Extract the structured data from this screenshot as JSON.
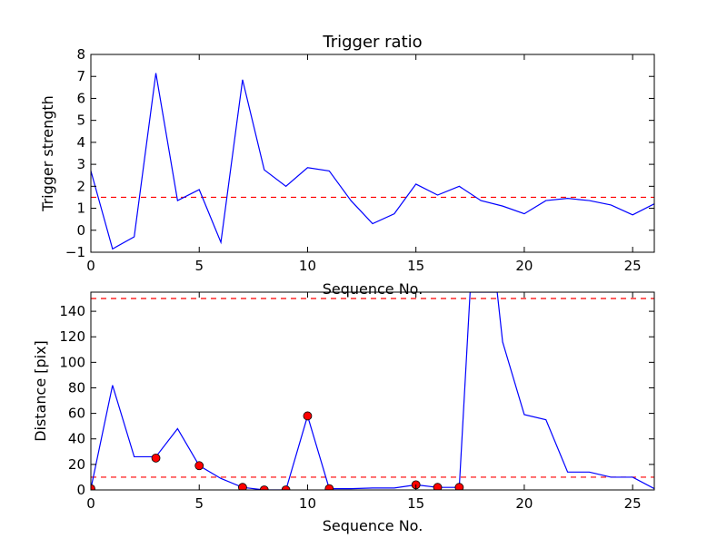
{
  "figure": {
    "title": "Trigger ratio"
  },
  "chart_data": [
    {
      "type": "line",
      "title": "Trigger ratio",
      "xlabel": "Sequence No.",
      "ylabel": "Trigger strength",
      "xlim": [
        0,
        26
      ],
      "ylim": [
        -1,
        8
      ],
      "xticks": [
        0,
        5,
        10,
        15,
        20,
        25
      ],
      "yticks": [
        -1,
        0,
        1,
        2,
        3,
        4,
        5,
        6,
        7,
        8
      ],
      "grid": false,
      "colors": {
        "line": "#0000ff",
        "threshold": "#ff0000",
        "axes": "#000000"
      },
      "series": [
        {
          "x": [
            0,
            1,
            2,
            3,
            4,
            5,
            6,
            7,
            8,
            9,
            10,
            11,
            12,
            13,
            14,
            15,
            16,
            17,
            18,
            19,
            20,
            21,
            22,
            23,
            24,
            25,
            26
          ],
          "values": [
            2.7,
            -0.85,
            -0.3,
            7.15,
            1.35,
            1.85,
            -0.55,
            6.85,
            2.75,
            2.0,
            2.85,
            2.7,
            1.35,
            0.3,
            0.75,
            2.1,
            1.6,
            2.0,
            1.35,
            1.1,
            0.75,
            1.35,
            1.45,
            1.35,
            1.15,
            0.7,
            1.2
          ]
        }
      ],
      "hlines": [
        1.5
      ]
    },
    {
      "type": "line",
      "title": "",
      "xlabel": "Sequence No.",
      "ylabel": "Distance [pix]",
      "xlim": [
        0,
        26
      ],
      "ylim": [
        0,
        155
      ],
      "xticks": [
        0,
        5,
        10,
        15,
        20,
        25
      ],
      "yticks": [
        0,
        20,
        40,
        60,
        80,
        100,
        120,
        140
      ],
      "grid": false,
      "colors": {
        "line": "#0000ff",
        "threshold": "#ff0000",
        "marker": "#ff0000",
        "axes": "#000000"
      },
      "series": [
        {
          "x": [
            0,
            1,
            2,
            3,
            4,
            5,
            6,
            7,
            8,
            9,
            10,
            11,
            12,
            13,
            14,
            15,
            16,
            17,
            17.5,
            18.75,
            19,
            20,
            21,
            22,
            23,
            24,
            25,
            26
          ],
          "values": [
            1,
            82,
            26,
            26,
            48,
            19,
            9,
            2,
            0,
            0,
            58,
            1,
            1,
            1.5,
            1.5,
            4,
            2,
            2,
            155,
            155,
            116,
            59,
            55,
            14,
            14,
            10,
            10,
            1
          ]
        }
      ],
      "markers": {
        "x": [
          0,
          3,
          5,
          7,
          8,
          9,
          10,
          11,
          15,
          16,
          17
        ],
        "values": [
          1,
          25,
          19,
          2,
          0,
          0,
          58,
          1,
          4,
          2,
          2
        ]
      },
      "hlines": [
        10,
        150
      ]
    }
  ]
}
